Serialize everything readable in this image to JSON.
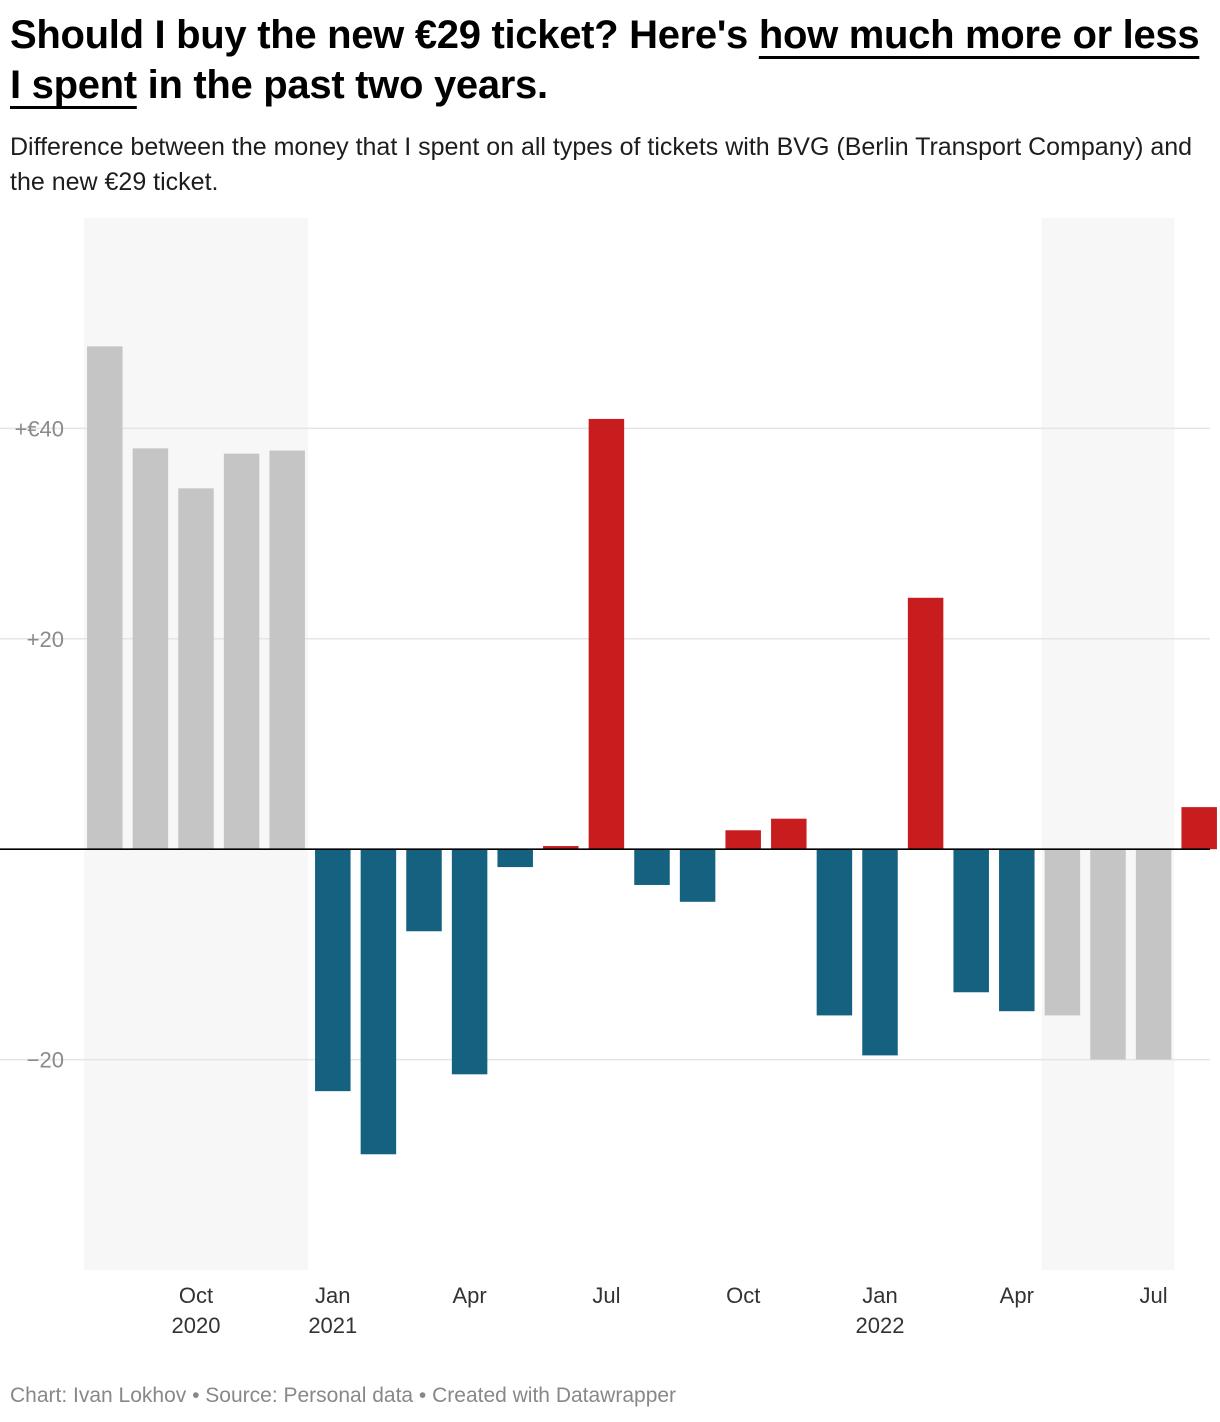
{
  "header": {
    "title_before": "Should I buy the new €29 ticket? Here's ",
    "title_highlight": "how much more or less I spent",
    "title_after": " in the past two years.",
    "subtitle": "Difference between the money that I spent on all types of tickets with BVG (Berlin Transport Company) and the new €29 ticket."
  },
  "footer": {
    "credit": "Chart: Ivan Lokhov • Source: Personal data • Created with Datawrapper"
  },
  "colors": {
    "positive": "#c81d1f",
    "negative": "#156180",
    "muted": "#c5c5c5",
    "shade": "#f7f7f7",
    "grid": "#e5e5e5",
    "baseline": "#000000"
  },
  "chart_data": {
    "type": "bar",
    "title": "Should I buy the new €29 ticket? Here's how much more or less I spent in the past two years.",
    "ylim": [
      -40,
      60
    ],
    "y_ticks": [
      {
        "value": 40,
        "label": "+€40"
      },
      {
        "value": 20,
        "label": "+20"
      },
      {
        "value": -20,
        "label": "−20"
      }
    ],
    "months": [
      "2020-08",
      "2020-09",
      "2020-10",
      "2020-11",
      "2020-12",
      "2021-01",
      "2021-02",
      "2021-03",
      "2021-04",
      "2021-05",
      "2021-06",
      "2021-07",
      "2021-08",
      "2021-09",
      "2021-10",
      "2021-11",
      "2021-12",
      "2022-01",
      "2022-02",
      "2022-03",
      "2022-04",
      "2022-05",
      "2022-06",
      "2022-07",
      "2022-08"
    ],
    "values": [
      47.8,
      38.1,
      34.3,
      37.6,
      37.9,
      -23.0,
      -29.0,
      -7.8,
      -21.4,
      -1.7,
      0.3,
      40.9,
      -3.4,
      -5.0,
      1.8,
      2.9,
      -15.8,
      -19.6,
      23.9,
      -13.6,
      -15.4,
      -15.8,
      -20,
      -20,
      4.0
    ],
    "bar_series": [
      "muted",
      "muted",
      "muted",
      "muted",
      "muted",
      "data",
      "data",
      "data",
      "data",
      "data",
      "data",
      "data",
      "data",
      "data",
      "data",
      "data",
      "data",
      "data",
      "data",
      "data",
      "data",
      "muted",
      "muted",
      "muted",
      "data"
    ],
    "shaded_ranges": [
      {
        "from": "2020-08",
        "to": "2020-12"
      },
      {
        "from": "2022-05",
        "to": "2022-07"
      }
    ],
    "x_ticks": [
      {
        "month": "2020-10",
        "label": "Oct",
        "year": "2020"
      },
      {
        "month": "2021-01",
        "label": "Jan",
        "year": "2021"
      },
      {
        "month": "2021-04",
        "label": "Apr",
        "year": ""
      },
      {
        "month": "2021-07",
        "label": "Jul",
        "year": ""
      },
      {
        "month": "2021-10",
        "label": "Oct",
        "year": ""
      },
      {
        "month": "2022-01",
        "label": "Jan",
        "year": "2022"
      },
      {
        "month": "2022-04",
        "label": "Apr",
        "year": ""
      },
      {
        "month": "2022-07",
        "label": "Jul",
        "year": ""
      }
    ]
  }
}
